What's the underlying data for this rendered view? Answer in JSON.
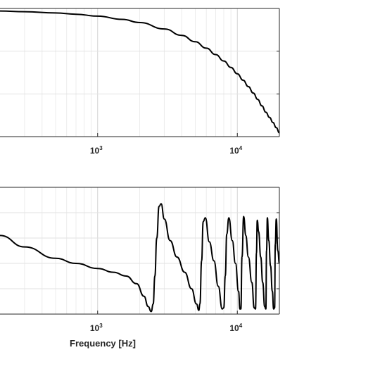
{
  "chart_data": [
    {
      "type": "line",
      "title": "",
      "xlabel": "",
      "ylabel": "",
      "x_scale": "log",
      "xlim": [
        200,
        20000
      ],
      "ylim": [
        0,
        1
      ],
      "x_ticks": [
        {
          "value": 1000,
          "base": "10",
          "exp": "3"
        },
        {
          "value": 10000,
          "base": "10",
          "exp": "4"
        }
      ],
      "y_gridlines": [
        0.333,
        0.667
      ],
      "grid": true,
      "line_color": "#000000",
      "series": [
        {
          "x": [
            200,
            300,
            500,
            700,
            1000,
            1500,
            2000,
            3000,
            4000,
            5000,
            6000,
            7000,
            8000,
            9000,
            10000,
            11000,
            12000,
            13000,
            14000,
            15000,
            16000,
            17000,
            18000,
            19000,
            20000
          ],
          "y": [
            0.98,
            0.975,
            0.965,
            0.955,
            0.94,
            0.915,
            0.89,
            0.84,
            0.79,
            0.74,
            0.69,
            0.64,
            0.59,
            0.54,
            0.49,
            0.44,
            0.39,
            0.34,
            0.29,
            0.24,
            0.19,
            0.15,
            0.11,
            0.07,
            0.03
          ]
        }
      ]
    },
    {
      "type": "line",
      "title": "",
      "xlabel": "Frequency [Hz]",
      "ylabel": "",
      "x_scale": "log",
      "xlim": [
        200,
        20000
      ],
      "ylim": [
        0,
        1
      ],
      "x_ticks": [
        {
          "value": 1000,
          "base": "10",
          "exp": "3"
        },
        {
          "value": 10000,
          "base": "10",
          "exp": "4"
        }
      ],
      "y_gridlines": [
        0.2,
        0.4,
        0.6,
        0.8
      ],
      "grid": true,
      "line_color": "#000000",
      "series": [
        {
          "x": [
            200,
            300,
            500,
            700,
            1000,
            1300,
            1600,
            1900,
            2150,
            2300,
            2420,
            2500,
            2570,
            2650,
            2750,
            2850,
            3000,
            3300,
            3700,
            4200,
            4700,
            5100,
            5300,
            5400,
            5550,
            5700,
            5900,
            6300,
            6800,
            7300,
            7800,
            8000,
            8200,
            8400,
            8700,
            9200,
            9700,
            10200,
            10450,
            10600,
            10800,
            11100,
            11500,
            12000,
            12700,
            13200,
            13500,
            13700,
            13900,
            14200,
            14700,
            15200,
            15700,
            16000,
            16200,
            16400,
            16800,
            17300,
            17800,
            18200,
            18500,
            18700,
            19000,
            19500,
            20000
          ],
          "y": [
            0.62,
            0.53,
            0.44,
            0.4,
            0.36,
            0.33,
            0.3,
            0.24,
            0.14,
            0.06,
            0.02,
            0.08,
            0.3,
            0.6,
            0.85,
            0.87,
            0.75,
            0.58,
            0.45,
            0.33,
            0.2,
            0.08,
            0.03,
            0.08,
            0.42,
            0.73,
            0.76,
            0.57,
            0.42,
            0.22,
            0.04,
            0.05,
            0.3,
            0.63,
            0.76,
            0.58,
            0.4,
            0.18,
            0.04,
            0.04,
            0.45,
            0.77,
            0.62,
            0.45,
            0.25,
            0.05,
            0.04,
            0.48,
            0.74,
            0.65,
            0.45,
            0.25,
            0.06,
            0.04,
            0.5,
            0.76,
            0.58,
            0.38,
            0.18,
            0.04,
            0.05,
            0.55,
            0.75,
            0.5,
            0.4
          ]
        }
      ]
    }
  ]
}
